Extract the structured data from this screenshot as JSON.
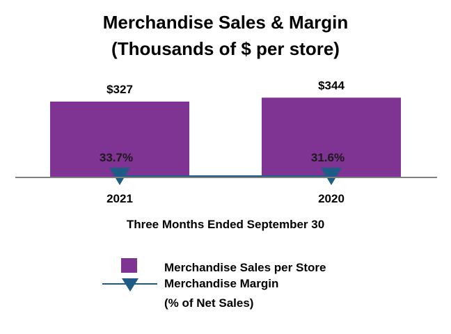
{
  "chart_data": {
    "type": "bar",
    "title": "Merchandise Sales & Margin",
    "subtitle": "(Thousands of $ per store)",
    "xlabel": "Three Months Ended September 30",
    "categories": [
      "2021",
      "2020"
    ],
    "series": [
      {
        "name": "Merchandise Sales per Store",
        "kind": "bar",
        "values": [
          327,
          344
        ],
        "data_labels": [
          "$327",
          "$344"
        ],
        "color": "#7f3393"
      },
      {
        "name": "Merchandise Margin",
        "name_line2": "(% of Net Sales)",
        "kind": "line-marker",
        "values": [
          33.7,
          31.6
        ],
        "data_labels": [
          "33.7%",
          "31.6%"
        ],
        "color": "#1f5c85"
      }
    ],
    "ylim": [
      0,
      400
    ],
    "grid": false,
    "legend_position": "bottom"
  }
}
